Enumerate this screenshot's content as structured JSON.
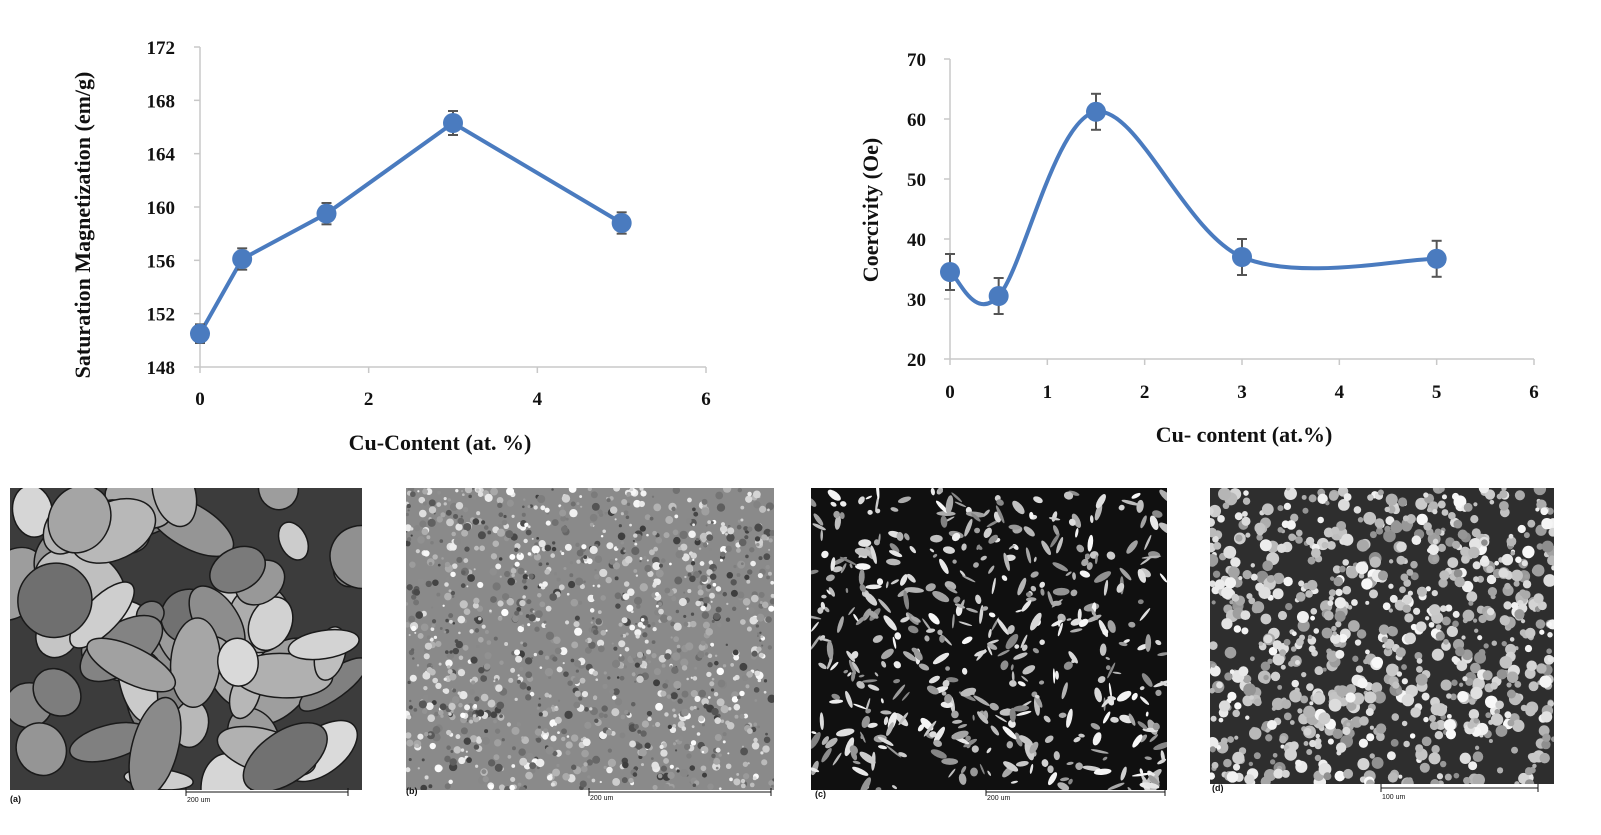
{
  "chart_data": [
    {
      "type": "line",
      "title": "",
      "xlabel": "Cu-Content (at. %)",
      "ylabel": "Saturation Magnetization (em/g)",
      "xlim": [
        0,
        6
      ],
      "ylim": [
        148,
        172
      ],
      "xticks": [
        "0",
        "2",
        "4",
        "6"
      ],
      "yticks": [
        "148",
        "152",
        "156",
        "160",
        "164",
        "168",
        "172"
      ],
      "x": [
        0,
        0.5,
        1.5,
        3,
        5
      ],
      "y": [
        150.5,
        156.1,
        159.5,
        166.3,
        158.8
      ],
      "error": [
        0.7,
        0.8,
        0.8,
        0.9,
        0.8
      ],
      "color": "#4a7bbf",
      "error_color": "#555555",
      "smooth": false,
      "grid": false
    },
    {
      "type": "line",
      "title": "",
      "xlabel": "Cu- content (at.%)",
      "ylabel": "Coercivity (Oe)",
      "xlim": [
        0,
        6
      ],
      "ylim": [
        20,
        70
      ],
      "xticks": [
        "0",
        "1",
        "2",
        "3",
        "4",
        "5",
        "6"
      ],
      "yticks": [
        "20",
        "30",
        "40",
        "50",
        "60",
        "70"
      ],
      "x": [
        0,
        0.5,
        1.5,
        3,
        5
      ],
      "y": [
        34.5,
        30.5,
        61.2,
        37,
        36.7
      ],
      "error": [
        3,
        3,
        3,
        3,
        3
      ],
      "color": "#4a7bbf",
      "error_color": "#555555",
      "smooth": true,
      "grid": false
    }
  ],
  "micrographs": [
    {
      "label": "(a)",
      "scale": "200 um",
      "style": "coarse"
    },
    {
      "label": "(b)",
      "scale": "200 um",
      "style": "fine"
    },
    {
      "label": "(c)",
      "scale": "200 um",
      "style": "dendritic"
    },
    {
      "label": "(d)",
      "scale": "100 um",
      "style": "granular"
    }
  ]
}
